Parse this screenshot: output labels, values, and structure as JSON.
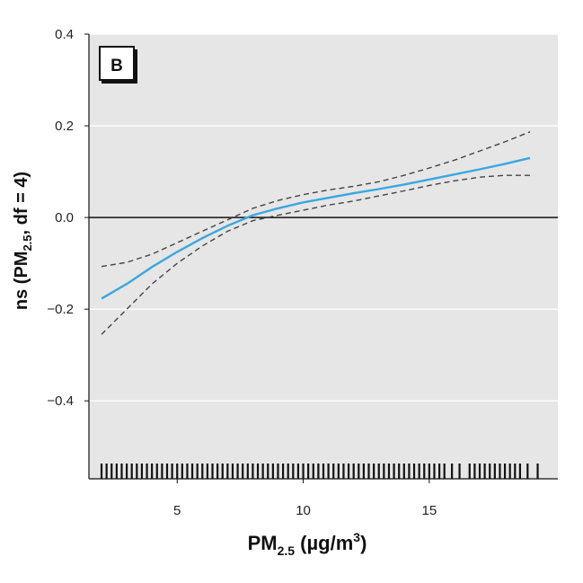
{
  "chart_data": {
    "type": "line",
    "panel_label": "B",
    "xlabel": {
      "base": "PM",
      "sub": "2.5",
      "rest_prefix": " (µg/m",
      "sup": "3",
      "rest_suffix": ")"
    },
    "ylabel": {
      "prefix": "ns (PM",
      "sub": "2.5",
      "suffix": ", df = 4)"
    },
    "xlim": [
      1.5,
      20.1
    ],
    "ylim": [
      -0.57,
      0.4
    ],
    "x_ticks": [
      5,
      10,
      15
    ],
    "x_tick_labels": [
      "5",
      "10",
      "15"
    ],
    "y_ticks": [
      0.4,
      0.2,
      0.0,
      -0.2,
      -0.4
    ],
    "y_tick_labels": [
      "0.4",
      "0.2",
      "0.0",
      "−0.2",
      "−0.4"
    ],
    "grid": true,
    "reference_line_y": 0.0,
    "colors": {
      "fit": "#3aa7e0",
      "ci": "#444444",
      "background": "#e6e6e6",
      "grid": "#ffffff"
    },
    "series": [
      {
        "role": "fit",
        "x": [
          2,
          3,
          4,
          5,
          6,
          7,
          8,
          9,
          10,
          11,
          12,
          13,
          14,
          15,
          16,
          17,
          18,
          19
        ],
        "y": [
          -0.177,
          -0.145,
          -0.108,
          -0.075,
          -0.045,
          -0.018,
          0.005,
          0.02,
          0.033,
          0.043,
          0.053,
          0.062,
          0.072,
          0.083,
          0.094,
          0.105,
          0.117,
          0.13
        ]
      },
      {
        "role": "upper-ci",
        "x": [
          2,
          3,
          4,
          5,
          6,
          7,
          8,
          9,
          10,
          11,
          12,
          13,
          14,
          15,
          16,
          17,
          18,
          19
        ],
        "y": [
          -0.107,
          -0.098,
          -0.08,
          -0.055,
          -0.03,
          -0.005,
          0.02,
          0.037,
          0.05,
          0.06,
          0.068,
          0.078,
          0.092,
          0.108,
          0.125,
          0.145,
          0.165,
          0.187
        ]
      },
      {
        "role": "lower-ci",
        "x": [
          2,
          3,
          4,
          5,
          6,
          7,
          8,
          9,
          10,
          11,
          12,
          13,
          14,
          15,
          16,
          17,
          18,
          19
        ],
        "y": [
          -0.255,
          -0.2,
          -0.145,
          -0.1,
          -0.062,
          -0.03,
          -0.007,
          0.005,
          0.016,
          0.027,
          0.036,
          0.047,
          0.058,
          0.07,
          0.08,
          0.088,
          0.092,
          0.092
        ]
      }
    ],
    "rug": [
      2.0,
      2.2,
      2.4,
      2.6,
      2.8,
      3.0,
      3.2,
      3.4,
      3.6,
      3.8,
      4.0,
      4.2,
      4.4,
      4.6,
      4.8,
      5.0,
      5.2,
      5.4,
      5.6,
      5.8,
      6.0,
      6.2,
      6.4,
      6.6,
      6.8,
      7.0,
      7.2,
      7.4,
      7.6,
      7.8,
      8.0,
      8.2,
      8.4,
      8.6,
      8.8,
      9.0,
      9.2,
      9.4,
      9.6,
      9.8,
      10.0,
      10.2,
      10.4,
      10.6,
      10.8,
      11.0,
      11.2,
      11.4,
      11.6,
      11.8,
      12.0,
      12.2,
      12.4,
      12.6,
      12.8,
      13.0,
      13.2,
      13.4,
      13.6,
      13.8,
      14.0,
      14.2,
      14.4,
      14.6,
      14.8,
      15.0,
      15.2,
      15.4,
      15.6,
      15.9,
      16.2,
      16.6,
      16.8,
      17.0,
      17.2,
      17.4,
      17.6,
      17.8,
      18.0,
      18.2,
      18.4,
      18.6,
      18.9,
      19.3
    ]
  }
}
